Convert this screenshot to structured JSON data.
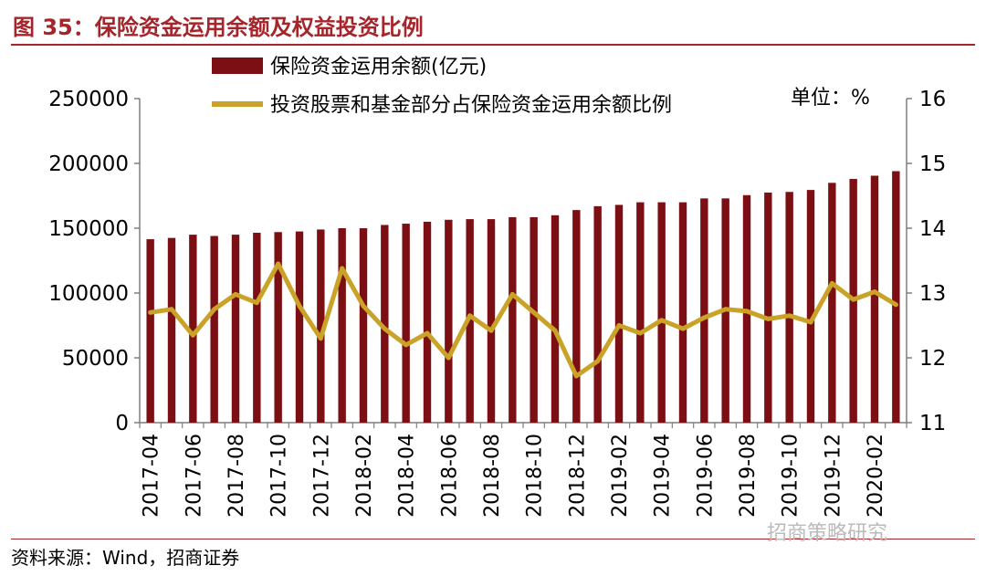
{
  "header": {
    "title": "图 35：保险资金运用余额及权益投资比例"
  },
  "footer": {
    "source": "资料来源：Wind，招商证券",
    "watermark": "招商策略研究"
  },
  "colors": {
    "bar": "#7b0f14",
    "line": "#c9a227",
    "title": "#a5252b"
  },
  "chart_data": {
    "type": "bar",
    "unit_label": "单位：%",
    "categories": [
      "2017-04",
      "2017-05",
      "2017-06",
      "2017-07",
      "2017-08",
      "2017-09",
      "2017-10",
      "2017-11",
      "2017-12",
      "2018-01",
      "2018-02",
      "2018-03",
      "2018-04",
      "2018-05",
      "2018-06",
      "2018-07",
      "2018-08",
      "2018-09",
      "2018-10",
      "2018-11",
      "2018-12",
      "2019-01",
      "2019-02",
      "2019-03",
      "2019-04",
      "2019-05",
      "2019-06",
      "2019-07",
      "2019-08",
      "2019-09",
      "2019-10",
      "2019-11",
      "2019-12",
      "2020-01",
      "2020-02",
      "2020-03"
    ],
    "tick_labels": [
      "2017-04",
      "2017-06",
      "2017-08",
      "2017-10",
      "2017-12",
      "2018-02",
      "2018-04",
      "2018-06",
      "2018-08",
      "2018-10",
      "2018-12",
      "2019-02",
      "2019-04",
      "2019-06",
      "2019-08",
      "2019-10",
      "2019-12",
      "2020-02"
    ],
    "series": [
      {
        "name": "保险资金运用余额(亿元)",
        "type": "bar",
        "axis": "left",
        "values": [
          141500,
          142500,
          145000,
          144000,
          145000,
          146500,
          147000,
          147500,
          149000,
          150000,
          150000,
          152500,
          153500,
          155000,
          156500,
          157000,
          157000,
          158500,
          158500,
          160000,
          164000,
          167000,
          168000,
          170000,
          170000,
          170000,
          173000,
          173000,
          175500,
          177500,
          178000,
          179500,
          185000,
          188000,
          190500,
          194000
        ]
      },
      {
        "name": "投资股票和基金部分占保险资金运用余额比例",
        "type": "line",
        "axis": "right",
        "values": [
          12.7,
          12.75,
          12.35,
          12.75,
          12.98,
          12.85,
          13.45,
          12.8,
          12.3,
          13.38,
          12.8,
          12.45,
          12.2,
          12.38,
          12.0,
          12.65,
          12.42,
          12.98,
          12.7,
          12.42,
          11.72,
          11.95,
          12.5,
          12.38,
          12.58,
          12.45,
          12.62,
          12.75,
          12.72,
          12.6,
          12.65,
          12.55,
          13.15,
          12.9,
          13.02,
          12.82
        ]
      }
    ],
    "y_left": {
      "min": 0,
      "max": 250000,
      "ticks": [
        "0",
        "50000",
        "100000",
        "150000",
        "200000",
        "250000"
      ]
    },
    "y_right": {
      "min": 11,
      "max": 16,
      "ticks": [
        "11",
        "12",
        "13",
        "14",
        "15",
        "16"
      ]
    },
    "legend_position": "top",
    "grid": false
  }
}
